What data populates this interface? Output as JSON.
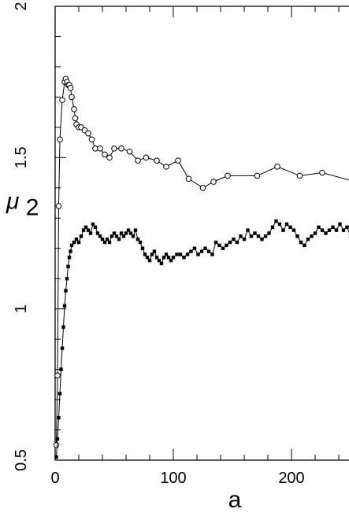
{
  "chart_data": {
    "type": "line",
    "xlabel": "a",
    "ylabel": "μ",
    "ylabel_subscript": "2",
    "xlim": [
      0,
      260
    ],
    "ylim": [
      0.5,
      2.0
    ],
    "xticks": [
      0,
      100,
      200
    ],
    "xtick_labels": [
      "0",
      "100",
      "200"
    ],
    "yticks": [
      0.5,
      1.0,
      1.5,
      2.0
    ],
    "ytick_labels": [
      "0.5",
      "1",
      "1.5",
      "2"
    ],
    "grid": false,
    "colors": {
      "line": "#000000",
      "axes": "#000000"
    },
    "series": [
      {
        "marker": "open-circle",
        "x": [
          1,
          2,
          3,
          4,
          6,
          8,
          9,
          10,
          11,
          12,
          13,
          14,
          16,
          17,
          18,
          20,
          22,
          25,
          28,
          31,
          34,
          38,
          42,
          46,
          50,
          56,
          63,
          70,
          77,
          86,
          94,
          104,
          113,
          125,
          134,
          146,
          171,
          188,
          207,
          226,
          254
        ],
        "y": [
          0.55,
          0.78,
          1.34,
          1.56,
          1.69,
          1.75,
          1.76,
          1.75,
          1.74,
          1.74,
          1.73,
          1.7,
          1.66,
          1.63,
          1.61,
          1.6,
          1.6,
          1.59,
          1.58,
          1.56,
          1.53,
          1.53,
          1.51,
          1.5,
          1.53,
          1.53,
          1.52,
          1.49,
          1.5,
          1.49,
          1.47,
          1.49,
          1.43,
          1.4,
          1.42,
          1.44,
          1.44,
          1.47,
          1.44,
          1.45,
          1.42
        ]
      },
      {
        "marker": "filled-square",
        "x": [
          1,
          2,
          3,
          4,
          5,
          6,
          7,
          8,
          9,
          10,
          11,
          12,
          13,
          14,
          16,
          18,
          20,
          22,
          24,
          26,
          28,
          30,
          32,
          34,
          36,
          38,
          40,
          42,
          44,
          46,
          48,
          50,
          52,
          54,
          56,
          58,
          60,
          62,
          64,
          66,
          68,
          70,
          72,
          74,
          76,
          78,
          80,
          82,
          84,
          86,
          88,
          90,
          92,
          94,
          96,
          98,
          100,
          103,
          106,
          109,
          112,
          115,
          118,
          121,
          124,
          127,
          130,
          133,
          136,
          139,
          142,
          145,
          148,
          151,
          154,
          157,
          160,
          163,
          166,
          169,
          172,
          175,
          178,
          181,
          184,
          187,
          190,
          193,
          196,
          199,
          202,
          205,
          208,
          211,
          214,
          217,
          220,
          223,
          226,
          229,
          232,
          235,
          238,
          241,
          244,
          247,
          250
        ],
        "y": [
          0.51,
          0.57,
          0.64,
          0.72,
          0.8,
          0.87,
          0.94,
          1.01,
          1.06,
          1.1,
          1.14,
          1.17,
          1.19,
          1.21,
          1.22,
          1.23,
          1.22,
          1.24,
          1.26,
          1.27,
          1.26,
          1.25,
          1.28,
          1.27,
          1.25,
          1.24,
          1.23,
          1.22,
          1.23,
          1.22,
          1.24,
          1.25,
          1.24,
          1.23,
          1.25,
          1.24,
          1.25,
          1.26,
          1.25,
          1.24,
          1.26,
          1.23,
          1.22,
          1.2,
          1.18,
          1.17,
          1.16,
          1.18,
          1.19,
          1.17,
          1.16,
          1.15,
          1.17,
          1.18,
          1.17,
          1.16,
          1.17,
          1.18,
          1.18,
          1.17,
          1.18,
          1.19,
          1.2,
          1.18,
          1.19,
          1.2,
          1.19,
          1.18,
          1.22,
          1.21,
          1.2,
          1.21,
          1.22,
          1.23,
          1.22,
          1.24,
          1.23,
          1.26,
          1.24,
          1.25,
          1.24,
          1.23,
          1.24,
          1.25,
          1.27,
          1.29,
          1.28,
          1.26,
          1.28,
          1.27,
          1.26,
          1.24,
          1.22,
          1.21,
          1.23,
          1.24,
          1.25,
          1.27,
          1.26,
          1.25,
          1.26,
          1.27,
          1.26,
          1.28,
          1.26,
          1.27,
          1.24
        ]
      }
    ]
  }
}
